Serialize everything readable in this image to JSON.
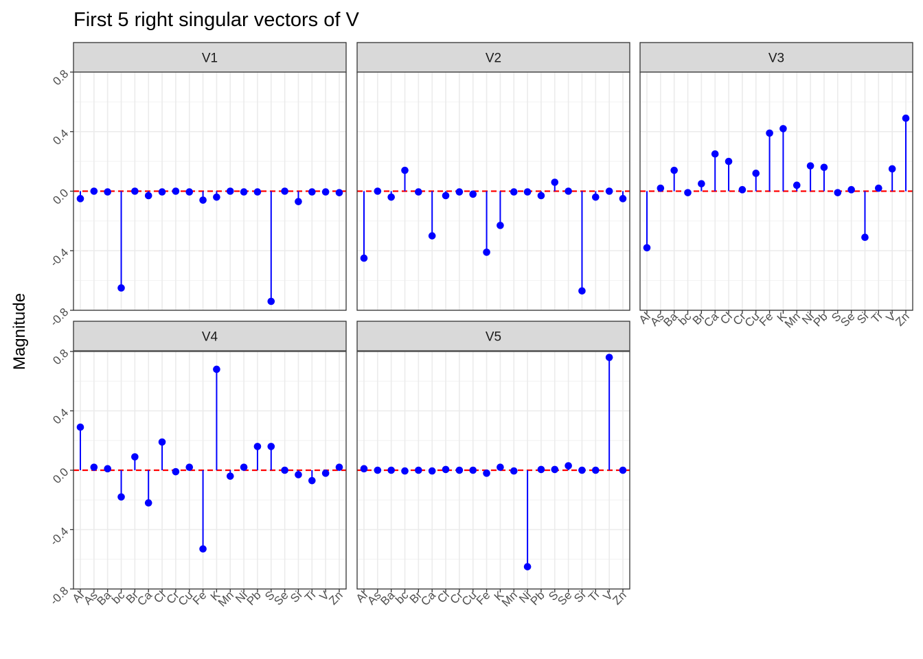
{
  "chart_data": {
    "type": "lollipop",
    "title": "First 5 right singular vectors of V",
    "ylabel": "Magnitude",
    "xlabel": "",
    "ylim": [
      -0.8,
      0.8
    ],
    "y_ticks": [
      "-0.8",
      "-0.4",
      "0.0",
      "0.4",
      "0.8"
    ],
    "y_tick_values": [
      -0.8,
      -0.4,
      0.0,
      0.4,
      0.8
    ],
    "categories": [
      "Al",
      "As",
      "Ba",
      "bc",
      "Br",
      "Ca",
      "Cl",
      "Cr",
      "Cu",
      "Fe",
      "K",
      "Mn",
      "Ni",
      "Pb",
      "S",
      "Se",
      "Si",
      "Ti",
      "V",
      "Zn"
    ],
    "reference_line": {
      "y": 0,
      "style": "dashed",
      "color": "#ff0000"
    },
    "point_color": "#0000ff",
    "stem_color": "#0000ff",
    "grid": true,
    "panels": [
      {
        "name": "V1",
        "values": [
          -0.05,
          0.0,
          -0.005,
          -0.65,
          0.0,
          -0.03,
          -0.005,
          0.0,
          -0.005,
          -0.06,
          -0.04,
          0.0,
          -0.005,
          -0.005,
          -0.74,
          0.0,
          -0.07,
          -0.005,
          -0.005,
          -0.01
        ]
      },
      {
        "name": "V2",
        "values": [
          -0.45,
          0.0,
          -0.04,
          0.14,
          -0.005,
          -0.3,
          -0.03,
          -0.005,
          -0.02,
          -0.41,
          -0.23,
          -0.005,
          -0.005,
          -0.03,
          0.06,
          0.0,
          -0.67,
          -0.04,
          0.0,
          -0.05
        ]
      },
      {
        "name": "V3",
        "values": [
          -0.38,
          0.02,
          0.14,
          -0.01,
          0.05,
          0.25,
          0.2,
          0.01,
          0.12,
          0.39,
          0.42,
          0.04,
          0.17,
          0.16,
          -0.01,
          0.01,
          -0.31,
          0.02,
          0.15,
          0.49
        ]
      },
      {
        "name": "V4",
        "values": [
          0.29,
          0.02,
          0.01,
          -0.18,
          0.09,
          -0.22,
          0.19,
          -0.01,
          0.02,
          -0.53,
          0.68,
          -0.04,
          0.02,
          0.16,
          0.16,
          0.0,
          -0.03,
          -0.07,
          -0.02,
          0.02
        ]
      },
      {
        "name": "V5",
        "values": [
          0.01,
          0.0,
          0.0,
          -0.005,
          0.0,
          -0.005,
          0.005,
          0.0,
          0.0,
          -0.02,
          0.02,
          -0.005,
          -0.65,
          0.005,
          0.005,
          0.03,
          0.0,
          0.0,
          0.76,
          0.0
        ]
      }
    ]
  }
}
